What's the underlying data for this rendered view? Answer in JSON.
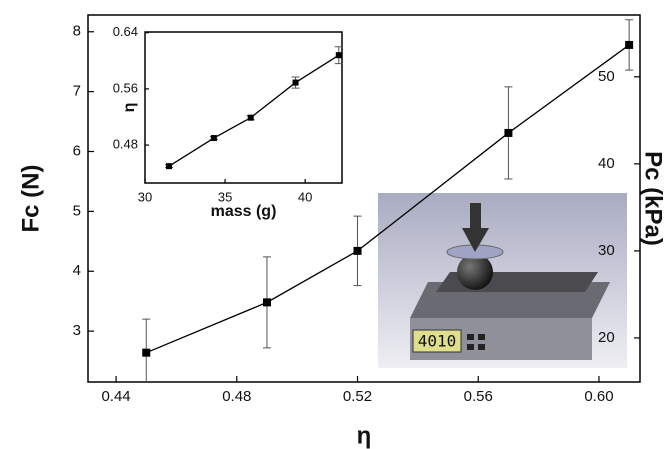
{
  "chart_data": [
    {
      "type": "line",
      "xlabel": "η",
      "ylabel": "Fc (N)",
      "y2label": "Pc (kPa)",
      "x": [
        0.45,
        0.49,
        0.52,
        0.57,
        0.61
      ],
      "series": [
        {
          "color": "#000000",
          "values": [
            2.64,
            3.48,
            4.34,
            6.31,
            7.78
          ],
          "errors": [
            0.56,
            0.76,
            0.58,
            0.77,
            0.42
          ]
        }
      ],
      "xlim": [
        0.4307,
        0.6136
      ],
      "xticks": [
        0.44,
        0.48,
        0.52,
        0.56,
        {
          "value": 0.6,
          "label": "0.60"
        }
      ],
      "ylim": [
        2.15,
        8.28
      ],
      "yticks": [
        3,
        4,
        5,
        6,
        7,
        8
      ],
      "y2lim": [
        14.94,
        57.1
      ],
      "y2ticks": [
        20,
        30,
        40,
        50
      ],
      "photo_display": "4010"
    },
    {
      "type": "line",
      "xlabel": "mass (g)",
      "ylabel": "η",
      "x": [
        31.5,
        34.3,
        36.6,
        39.4,
        42.1
      ],
      "series": [
        {
          "color": "#000000",
          "values": [
            0.45,
            0.49,
            0.519,
            0.569,
            0.608
          ],
          "errors": [
            0.002,
            0.002,
            0.003,
            0.008,
            0.012
          ]
        }
      ],
      "xlim": [
        30,
        42.3
      ],
      "xticks": [
        30,
        35,
        40
      ],
      "ylim": [
        0.426,
        0.641
      ],
      "yticks": [
        0.48,
        0.56,
        0.64
      ]
    }
  ]
}
